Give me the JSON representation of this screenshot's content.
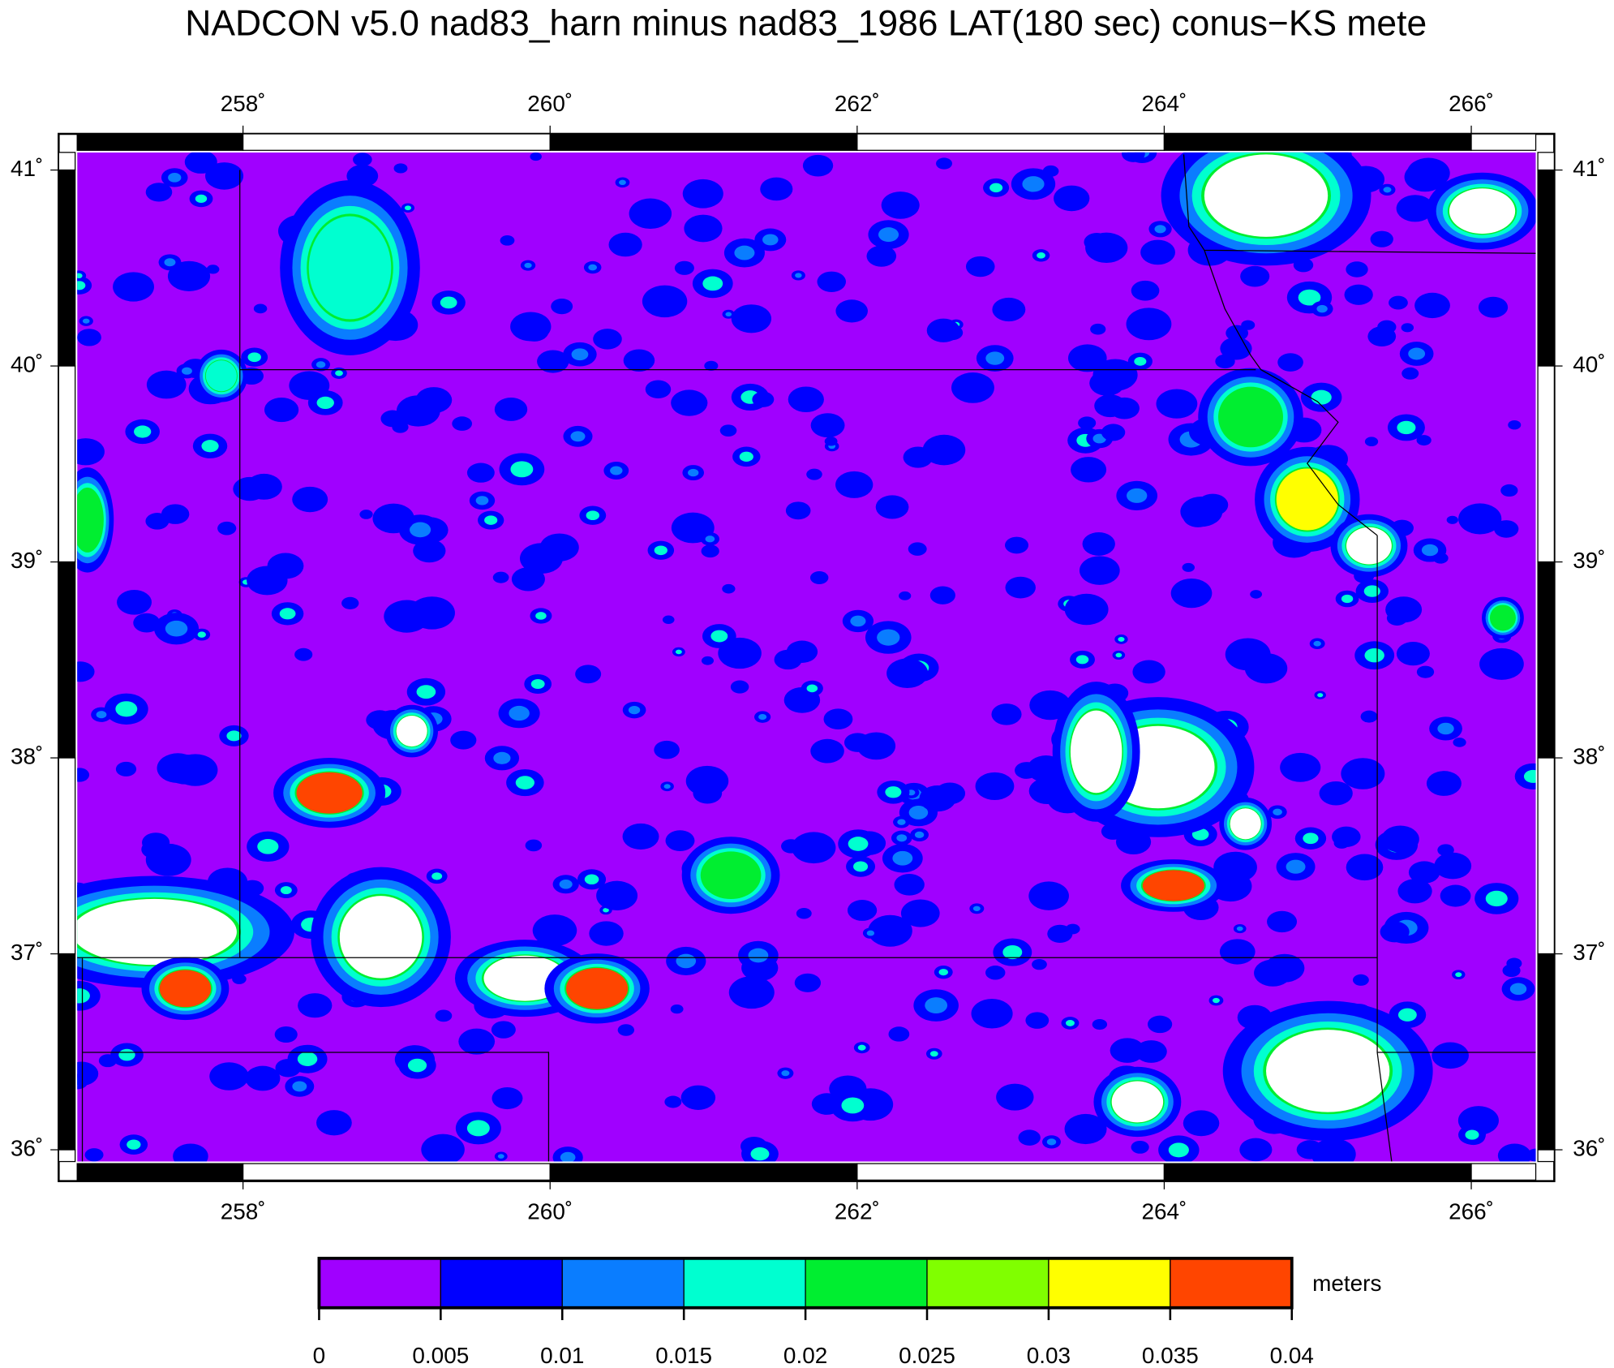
{
  "chart_data": {
    "type": "map",
    "title": "NADCON v5.0 nad83_harn minus nad83_1986 LAT(180 sec) conus−KS mete",
    "xlim": [
      256.92,
      266.42
    ],
    "ylim": [
      35.94,
      41.09
    ],
    "xticks": [
      {
        "value": 258,
        "label": "258˚"
      },
      {
        "value": 260,
        "label": "260˚"
      },
      {
        "value": 262,
        "label": "262˚"
      },
      {
        "value": 264,
        "label": "264˚"
      },
      {
        "value": 266,
        "label": "266˚"
      }
    ],
    "yticks": [
      {
        "value": 41,
        "label": "41˚"
      },
      {
        "value": 40,
        "label": "40˚"
      },
      {
        "value": 39,
        "label": "39˚"
      },
      {
        "value": 38,
        "label": "38˚"
      },
      {
        "value": 37,
        "label": "37˚"
      },
      {
        "value": 36,
        "label": "36˚"
      }
    ],
    "colorbar": {
      "clim": [
        0,
        0.04
      ],
      "ticks": [
        0,
        0.005,
        0.01,
        0.015,
        0.02,
        0.025,
        0.03,
        0.035,
        0.04
      ],
      "colors": [
        "#a000ff",
        "#0000ff",
        "#0a7dff",
        "#00ffd0",
        "#00ee30",
        "#80ff00",
        "#ffff00",
        "#ff4500"
      ],
      "unit": "meters"
    }
  }
}
